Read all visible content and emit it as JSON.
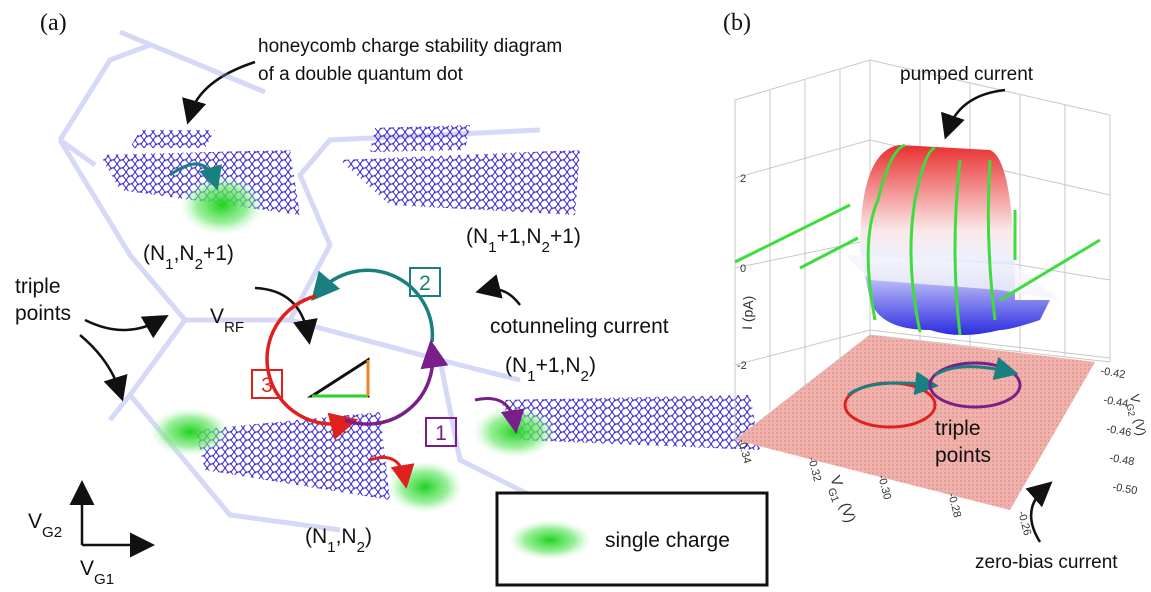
{
  "panel_a": {
    "label": "(a)",
    "annotation": [
      "honeycomb charge stability diagram",
      "of a double quantum dot"
    ],
    "states": [
      [
        "(N",
        "1",
        ",N",
        "2",
        "+1)"
      ],
      [
        "(N",
        "1",
        "+1,N",
        "2",
        "+1)"
      ],
      [
        "(N",
        "1",
        "+1,N",
        "2",
        ")"
      ],
      [
        "(N",
        "1",
        ",N",
        "2",
        ")"
      ]
    ],
    "v_rf": [
      "V",
      "RF"
    ],
    "triple_points": [
      "triple",
      "points"
    ],
    "cotunneling": "cotunneling current",
    "steps": [
      "1",
      "2",
      "3"
    ],
    "axis_vg2": [
      "V",
      "G2"
    ],
    "axis_vg1": [
      "V",
      "G1"
    ],
    "legend": "single charge"
  },
  "panel_b": {
    "label": "(b)",
    "pumped_current": "pumped current",
    "z_axis_label": "I (pA)",
    "z_ticks": [
      "2",
      "0",
      "-2"
    ],
    "x_axis_label": [
      "V",
      "G1",
      " (V)"
    ],
    "x_ticks": [
      "-0.34",
      "-0.32",
      "-0.30",
      "-0.28",
      "-0.26"
    ],
    "y_axis_label": [
      "V",
      "G2",
      " (V)"
    ],
    "y_ticks": [
      "-0.42",
      "-0.44",
      "-0.46",
      "-0.48",
      "-0.50"
    ],
    "triple_points": [
      "triple",
      "points"
    ],
    "zero_bias": "zero-bias current"
  }
}
